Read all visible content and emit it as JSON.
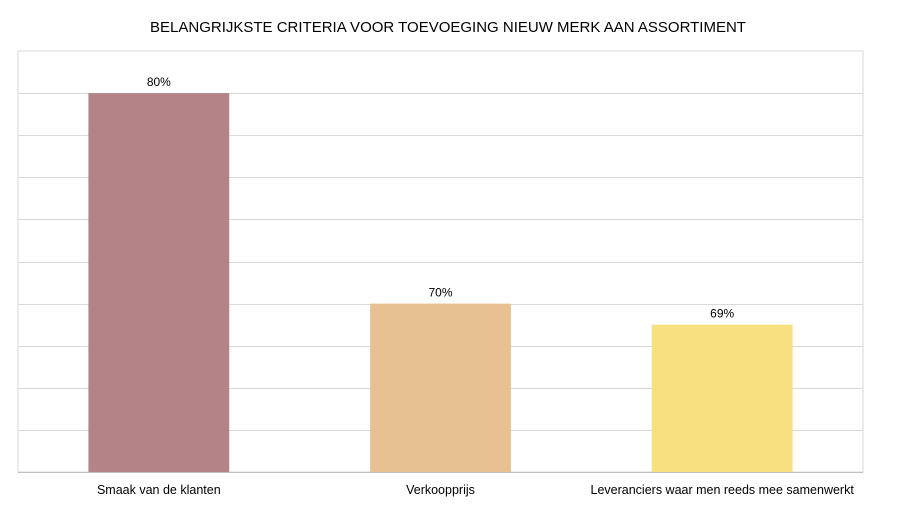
{
  "chart_data": {
    "type": "bar",
    "title": "BELANGRIJKSTE CRITERIA VOOR TOEVOEGING NIEUW MERK AAN ASSORTIMENT",
    "categories": [
      "Smaak van de klanten",
      "Verkoopprijs",
      "Leveranciers waar men reeds mee samenwerkt"
    ],
    "values": [
      80,
      70,
      69
    ],
    "value_labels": [
      "80%",
      "70%",
      "69%"
    ],
    "colors": [
      "#b38388",
      "#e8c192",
      "#f8df80"
    ],
    "xlabel": "",
    "ylabel": "",
    "ylim": [
      62,
      82
    ],
    "gridlines": true,
    "legend": "none"
  }
}
